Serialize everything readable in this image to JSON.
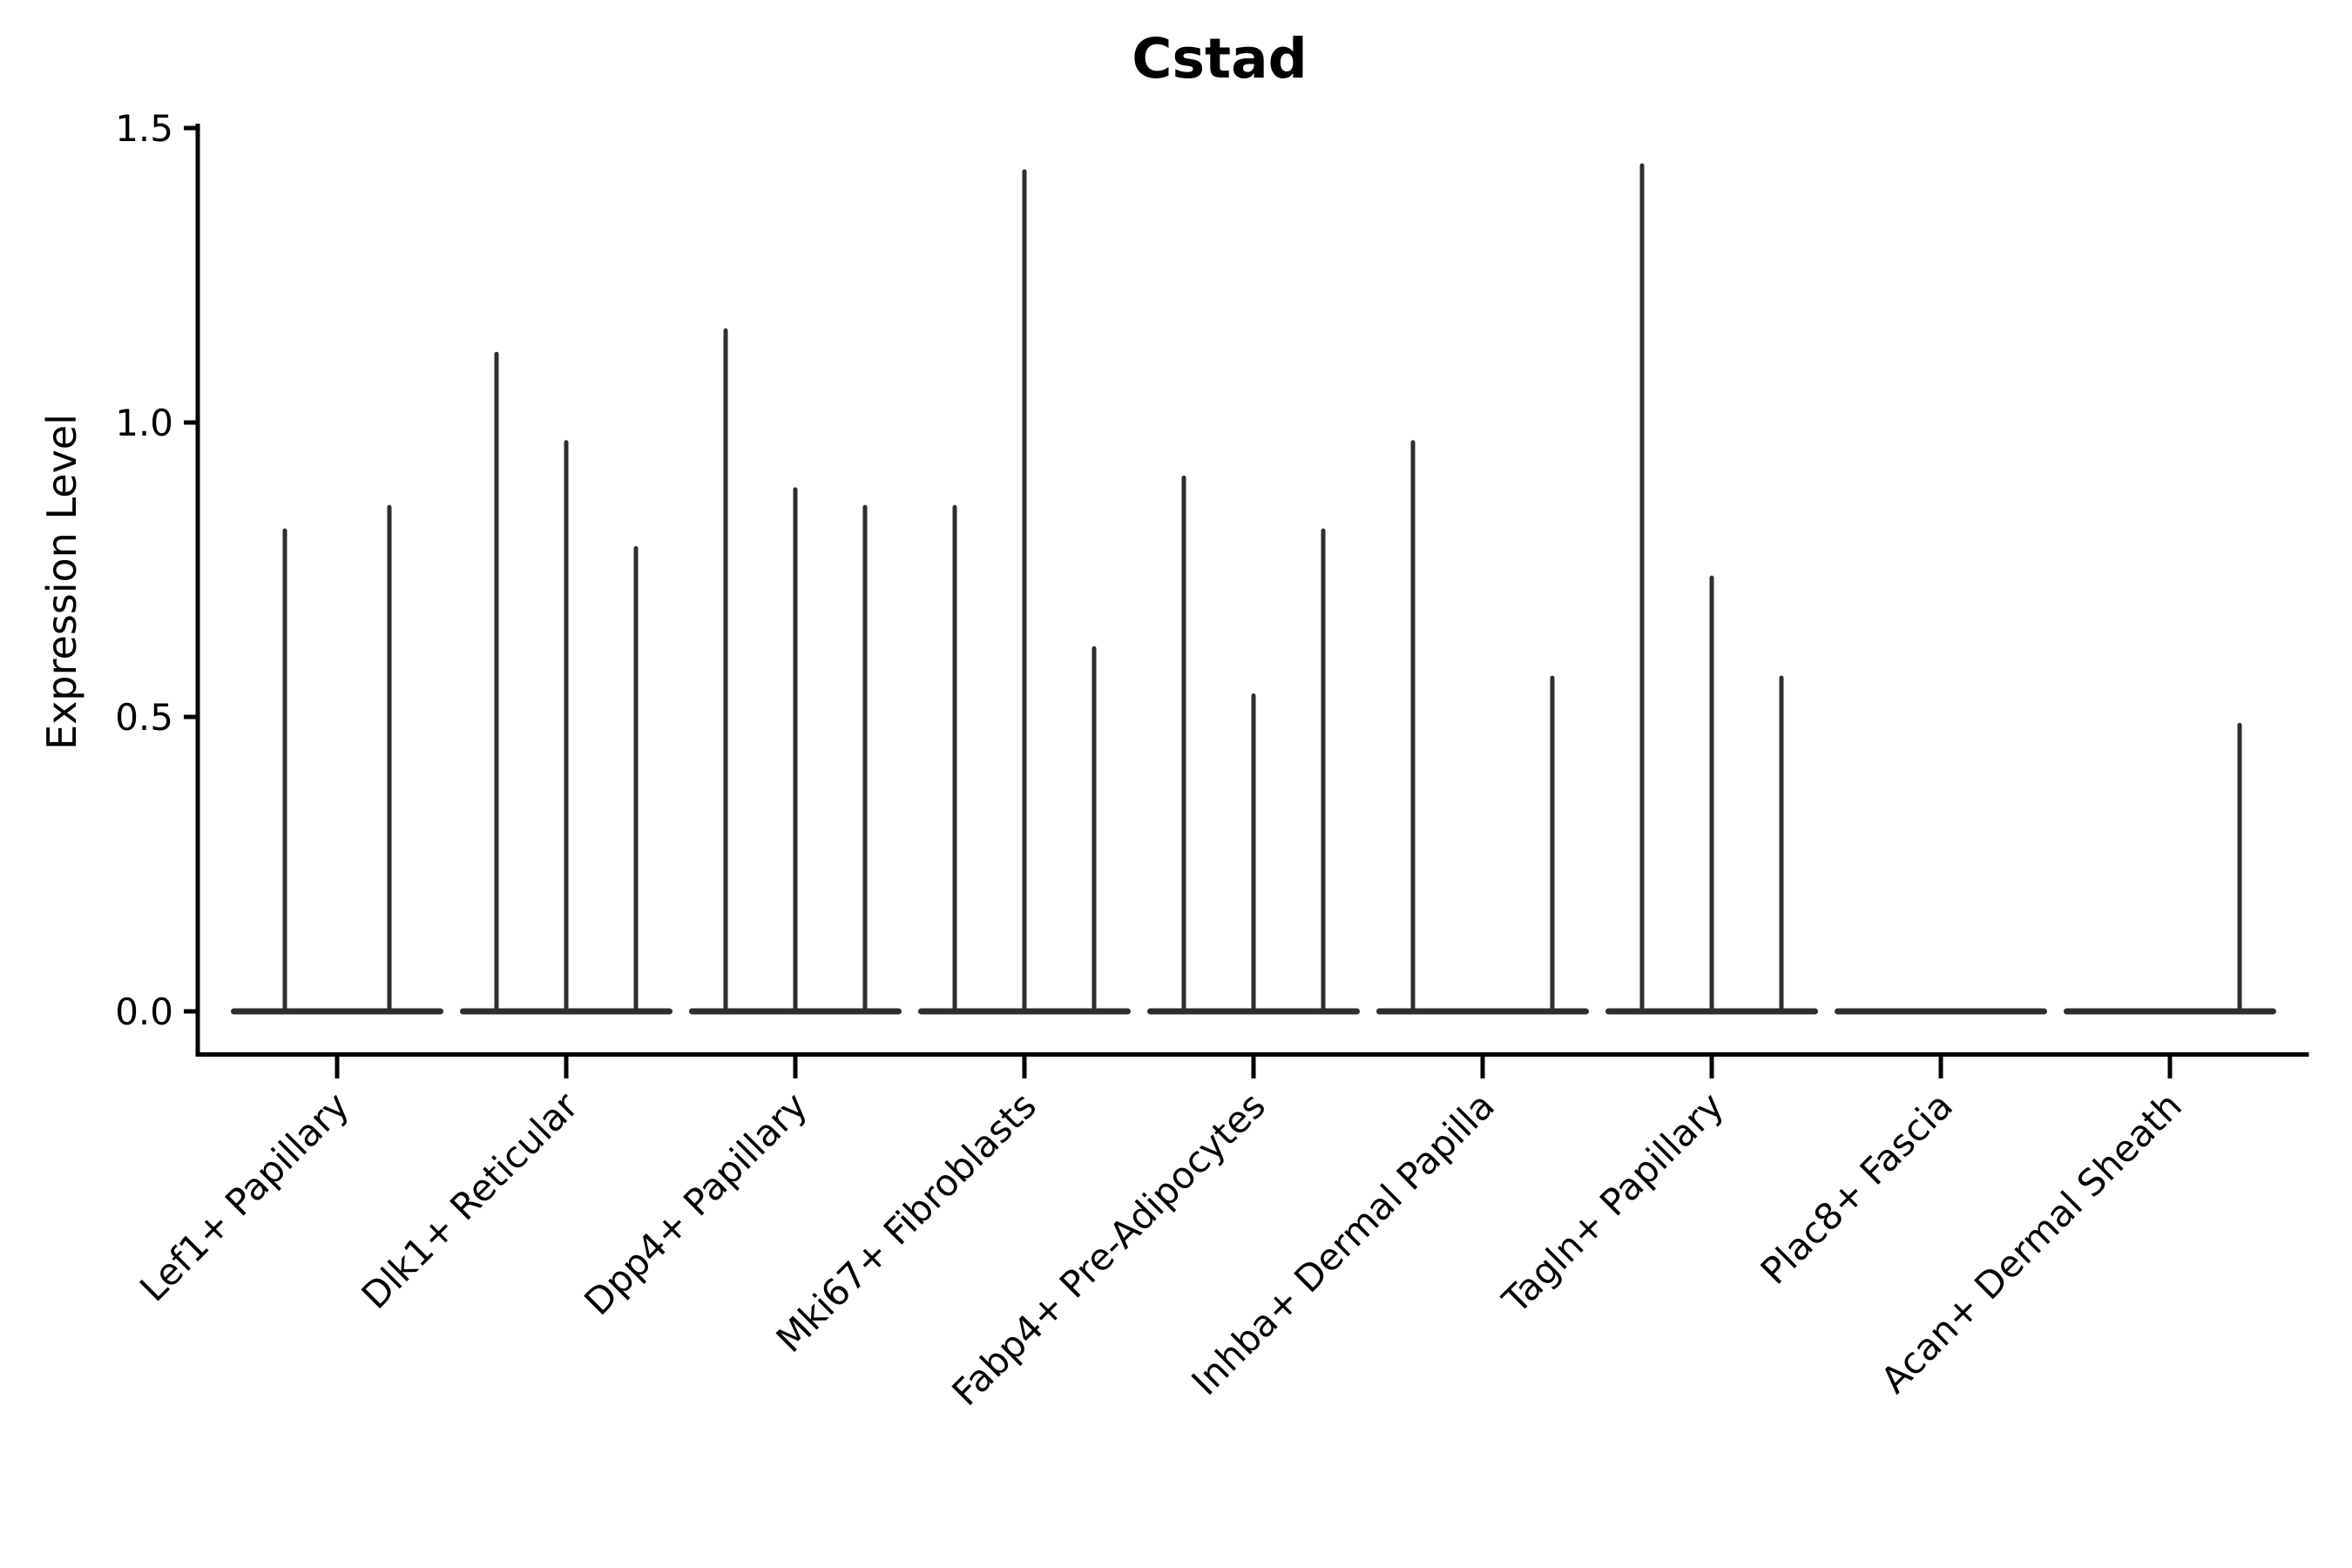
{
  "chart_data": {
    "type": "violin",
    "title": "Cstad",
    "xlabel": "",
    "ylabel": "Expression Level",
    "ylim": [
      0,
      1.5
    ],
    "yticks": [
      0,
      0.5,
      1,
      1.5
    ],
    "ytick_labels": [
      "0.0",
      "0.5",
      "1.0",
      "1.5"
    ],
    "grid": false,
    "legend": "none",
    "note": "Grouped violin plot of gene expression. Every violin is bottom-heavy at 0 expression (flat lens at baseline) with a very narrow spike rising to the listed maximum. A value of 0 renders as a flat violin with no spike.",
    "categories": [
      "Lef1+ Papillary",
      "Dlk1+ Reticular",
      "Dpp4+ Papillary",
      "Mki67+ Fibroblasts",
      "Fabp4+ Pre-Adipocytes",
      "Inhba+ Dermal Papilla",
      "Tagln+ Papillary",
      "Plac8+ Fascia",
      "Acan+ Dermal Sheath"
    ],
    "series": [
      {
        "category": "Lef1+ Papillary",
        "violin_maxima": [
          0.82,
          0.86
        ]
      },
      {
        "category": "Dlk1+ Reticular",
        "violin_maxima": [
          1.12,
          0.97,
          0.79
        ]
      },
      {
        "category": "Dpp4+ Papillary",
        "violin_maxima": [
          1.16,
          0.89,
          0.86
        ]
      },
      {
        "category": "Mki67+ Fibroblasts",
        "violin_maxima": [
          0.86,
          1.43,
          0.62
        ]
      },
      {
        "category": "Fabp4+ Pre-Adipocytes",
        "violin_maxima": [
          0.91,
          0.54,
          0.82
        ]
      },
      {
        "category": "Inhba+ Dermal Papilla",
        "violin_maxima": [
          0.97,
          0,
          0.57
        ]
      },
      {
        "category": "Tagln+ Papillary",
        "violin_maxima": [
          1.44,
          0.74,
          0.57
        ]
      },
      {
        "category": "Plac8+ Fascia",
        "violin_maxima": [
          0,
          0,
          0
        ]
      },
      {
        "category": "Acan+ Dermal Sheath",
        "violin_maxima": [
          0,
          0,
          0.49
        ]
      }
    ]
  },
  "colors": {
    "violin": "#2e2e2e",
    "axis": "#000000",
    "text": "#000000",
    "background": "#ffffff"
  }
}
